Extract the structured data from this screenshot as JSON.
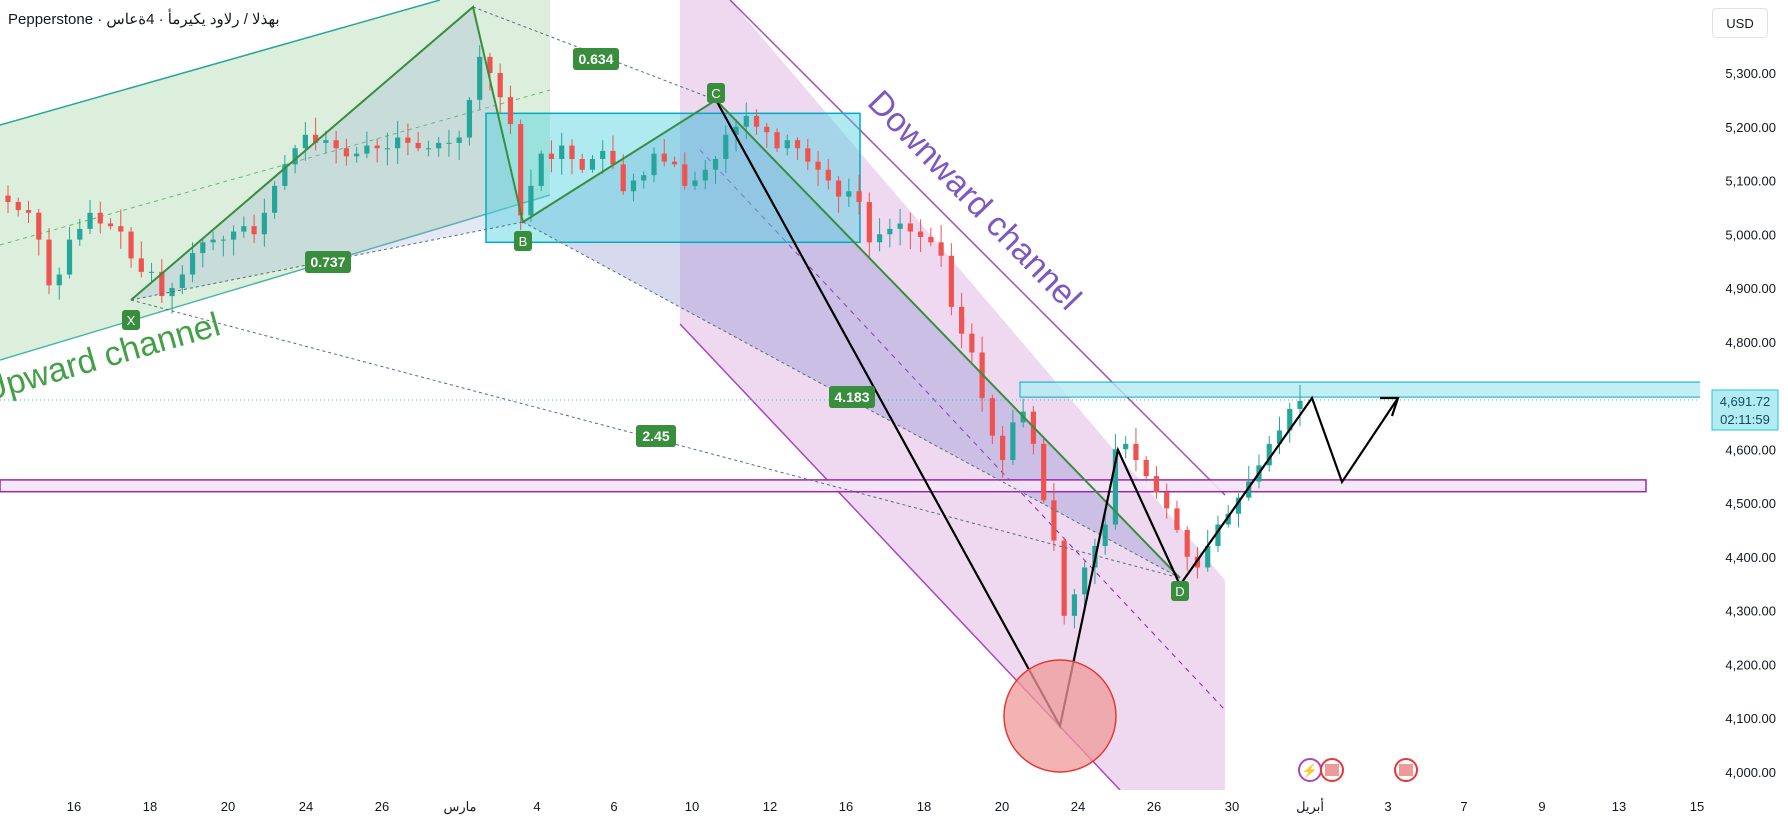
{
  "header": {
    "title": "Pepperstone · بهذلا / رلاود يكيرمأ · 4ةعاس"
  },
  "currency_button": {
    "label": "USD"
  },
  "current_price": {
    "value": "4,691.72",
    "countdown": "02:11:59",
    "price": 4691.72
  },
  "colors": {
    "up": "#26a69a",
    "down": "#ef5350",
    "upward_channel": "#4caf50",
    "downward_channel": "#9c27b0",
    "rectangle": "#00bcd4",
    "pattern_line": "#388e3c",
    "projection": "#000000"
  },
  "annotations": {
    "upward_channel_label": "Upward channel",
    "downward_channel_label": "Downward channel",
    "pivots": [
      "X",
      "B",
      "C",
      "D"
    ],
    "ratios": [
      {
        "label": "0.634",
        "value": 0.634
      },
      {
        "label": "0.737",
        "value": 0.737
      },
      {
        "label": "4.183",
        "value": 4.183
      },
      {
        "label": "2.45",
        "value": 2.45
      }
    ]
  },
  "chart_data": {
    "type": "candlestick",
    "title": "",
    "symbol": "بهذلا / رلاود يكيرمأ",
    "timeframe": "4ةعاس",
    "broker": "Pepperstone",
    "currency": "USD",
    "ylim": [
      3980,
      5400
    ],
    "y_ticks": [
      4000,
      4100,
      4200,
      4300,
      4400,
      4500,
      4600,
      4700,
      4800,
      4900,
      5000,
      5100,
      5200,
      5300
    ],
    "y_tick_labels": [
      "4,000.00",
      "4,100.00",
      "4,200.00",
      "4,300.00",
      "4,400.00",
      "4,500.00",
      "4,600.00",
      "4,700.00",
      "4,800.00",
      "4,900.00",
      "5,000.00",
      "5,100.00",
      "5,200.00",
      "5,300.00"
    ],
    "x_tick_labels": [
      "16",
      "18",
      "20",
      "24",
      "26",
      "مارس",
      "4",
      "6",
      "10",
      "12",
      "16",
      "18",
      "20",
      "24",
      "26",
      "30",
      "أبريل",
      "3",
      "7",
      "9",
      "13",
      "15"
    ],
    "key_levels": {
      "resistance_zone": [
        4697,
        4725
      ],
      "support_zone": [
        4521,
        4543
      ],
      "consolidation_box": [
        4985,
        5225
      ]
    },
    "harmonic_pattern": {
      "X": 4855,
      "A": 5355,
      "B": 5020,
      "C": 5225,
      "D": 4355
    },
    "projection_path": [
      4090,
      4600,
      4350,
      4695,
      4545,
      4690
    ],
    "close_series": [
      5060,
      5045,
      5040,
      4990,
      4905,
      4925,
      4990,
      5010,
      5040,
      5020,
      5015,
      5005,
      4955,
      4930,
      4930,
      4885,
      4900,
      4925,
      4965,
      4985,
      4990,
      4990,
      5005,
      5015,
      5000,
      5040,
      5090,
      5130,
      5160,
      5185,
      5170,
      5175,
      5160,
      5145,
      5150,
      5165,
      5160,
      5160,
      5180,
      5170,
      5160,
      5160,
      5170,
      5170,
      5180,
      5250,
      5330,
      5300,
      5255,
      5205,
      5035,
      5090,
      5150,
      5140,
      5165,
      5140,
      5120,
      5140,
      5155,
      5130,
      5080,
      5100,
      5110,
      5150,
      5135,
      5130,
      5090,
      5100,
      5120,
      5140,
      5185,
      5200,
      5220,
      5200,
      5190,
      5160,
      5175,
      5160,
      5135,
      5120,
      5100,
      5070,
      5080,
      5060,
      4985,
      5000,
      5010,
      5020,
      5005,
      4995,
      4985,
      4960,
      4865,
      4815,
      4780,
      4695,
      4625,
      4580,
      4650,
      4670,
      4610,
      4505,
      4430,
      4290,
      4330,
      4380,
      4420,
      4460,
      4600,
      4610,
      4580,
      4550,
      4520,
      4490,
      4450,
      4400,
      4380,
      4420,
      4460,
      4480,
      4510,
      4540,
      4570,
      4610,
      4635,
      4675,
      4690
    ]
  }
}
